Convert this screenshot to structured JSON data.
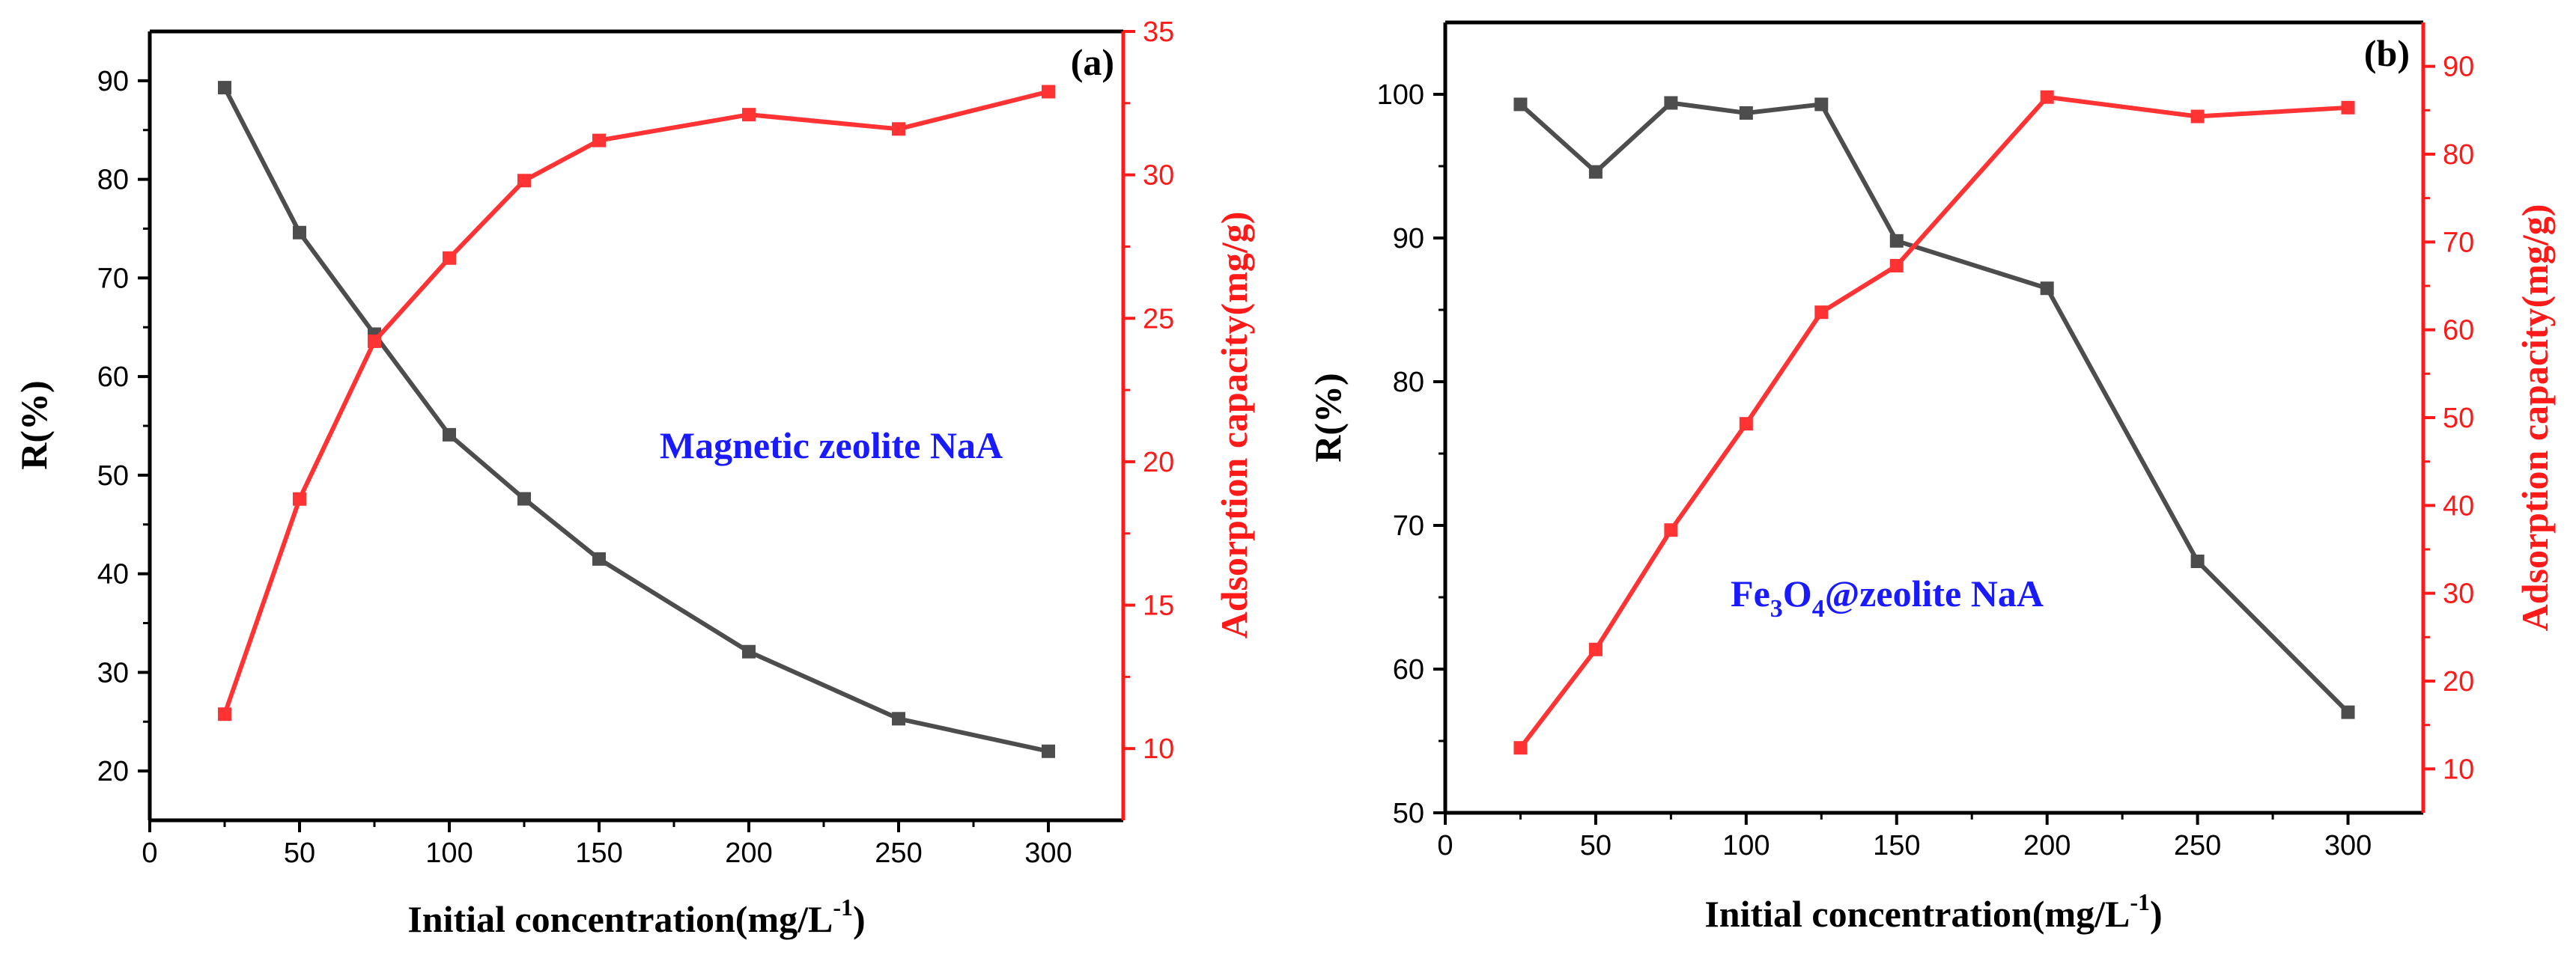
{
  "chart_data": [
    {
      "type": "line",
      "panel_label": "(a)",
      "annotation": {
        "text": "Magnetic zeolite NaA",
        "color": "#1a1aff"
      },
      "xlabel": "Initial concentration(mg/L",
      "xlabel_sup": "-1",
      "xlabel_end": ")",
      "ylabel_left": "R(%)",
      "ylabel_right": "Adsorption capacity(mg/g)",
      "xlim": [
        0,
        325
      ],
      "ylim_left": [
        15,
        95
      ],
      "ylim_right": [
        7.5,
        35
      ],
      "xticks": [
        0,
        50,
        100,
        150,
        200,
        250,
        300
      ],
      "yticks_left": [
        20,
        30,
        40,
        50,
        60,
        70,
        80,
        90
      ],
      "yticks_right": [
        10,
        15,
        20,
        25,
        30,
        35
      ],
      "x": [
        25,
        50,
        75,
        100,
        125,
        150,
        200,
        250,
        300
      ],
      "series": [
        {
          "name": "R(%)",
          "axis": "left",
          "color": "#4d4d4d",
          "values": [
            89.3,
            74.6,
            64.3,
            54.1,
            47.6,
            41.5,
            32.1,
            25.3,
            22.0
          ]
        },
        {
          "name": "Adsorption capacity(mg/g)",
          "axis": "right",
          "color": "#ff3333",
          "values": [
            11.2,
            18.7,
            24.2,
            27.1,
            29.8,
            31.2,
            32.1,
            31.6,
            32.9
          ]
        }
      ]
    },
    {
      "type": "line",
      "panel_label": "(b)",
      "annotation": {
        "prefix": "Fe",
        "sub1": "3",
        "mid": "O",
        "sub2": "4",
        "rest": "@zeolite NaA",
        "color": "#1a1aff"
      },
      "xlabel": "Initial concentration(mg/L",
      "xlabel_sup": "-1",
      "xlabel_end": ")",
      "ylabel_left": "R(%)",
      "ylabel_right": "Adsorption capacity(mg/g)",
      "xlim": [
        0,
        325
      ],
      "ylim_left": [
        50,
        105
      ],
      "ylim_right": [
        5,
        95
      ],
      "xticks": [
        0,
        50,
        100,
        150,
        200,
        250,
        300
      ],
      "yticks_left": [
        50,
        60,
        70,
        80,
        90,
        100
      ],
      "yticks_right": [
        10,
        20,
        30,
        40,
        50,
        60,
        70,
        80,
        90
      ],
      "x": [
        25,
        50,
        75,
        100,
        125,
        150,
        200,
        250,
        300
      ],
      "series": [
        {
          "name": "R(%)",
          "axis": "left",
          "color": "#4d4d4d",
          "values": [
            99.3,
            94.6,
            99.4,
            98.7,
            99.3,
            89.8,
            86.5,
            67.5,
            57.0
          ]
        },
        {
          "name": "Adsorption capacity(mg/g)",
          "axis": "right",
          "color": "#ff3333",
          "values": [
            12.4,
            23.6,
            37.2,
            49.3,
            62.0,
            67.3,
            86.5,
            84.3,
            85.3
          ]
        }
      ]
    }
  ],
  "colors": {
    "left_axis": "#000000",
    "right_axis": "#ff1a1a"
  }
}
